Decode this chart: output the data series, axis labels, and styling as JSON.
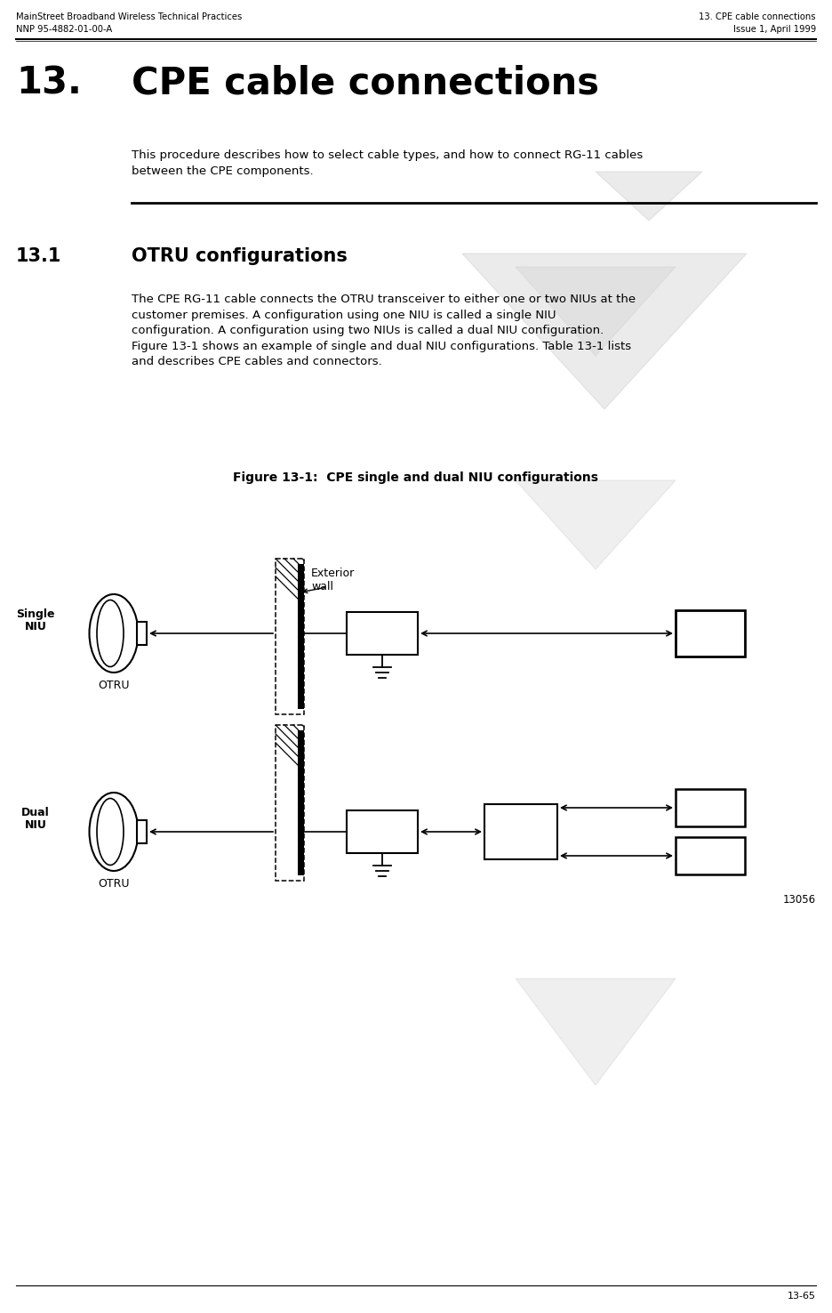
{
  "page_width": 9.36,
  "page_height": 14.76,
  "bg_color": "#ffffff",
  "header_left_line1": "MainStreet Broadband Wireless Technical Practices",
  "header_left_line2": "NNP 95-4882-01-00-A",
  "header_right_line1": "13. CPE cable connections",
  "header_right_line2": "Issue 1, April 1999",
  "chapter_number": "13.",
  "chapter_title": "CPE cable connections",
  "intro_text_line1": "This procedure describes how to select cable types, and how to connect RG-11 cables",
  "intro_text_line2": "between the CPE components.",
  "section_number": "13.1",
  "section_title": "OTRU configurations",
  "body_line1": "The CPE RG-11 cable connects the OTRU transceiver to either one or two NIUs at the",
  "body_line2": "customer premises. A configuration using one NIU is called a single NIU",
  "body_line3": "configuration. A configuration using two NIUs is called a dual NIU configuration.",
  "body_line4": "Figure 13-1 shows an example of single and dual NIU configurations. Table 13-1 lists",
  "body_line5": "and describes CPE cables and connectors.",
  "figure_caption": "Figure 13-1:  CPE single and dual NIU configurations",
  "figure_number": "13056",
  "footer_text": "13-65",
  "draft_color": "#c8c8c8",
  "draft_alpha": 0.35
}
